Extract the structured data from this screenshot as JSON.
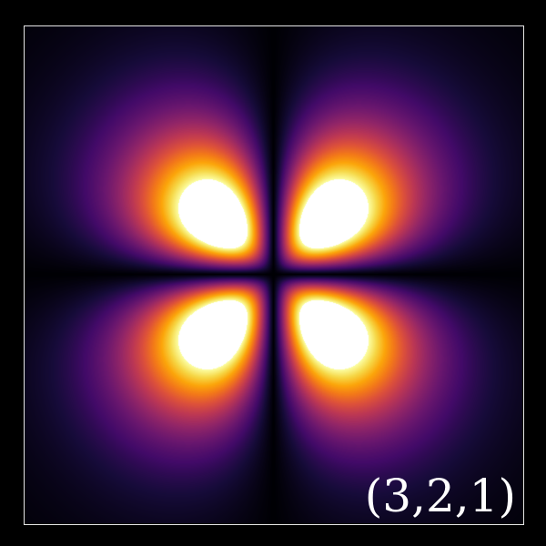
{
  "image": {
    "label": "(3,2,1)",
    "colormap": "inferno",
    "background_color": "#000000",
    "frame_color": "#e6e6e6"
  }
}
